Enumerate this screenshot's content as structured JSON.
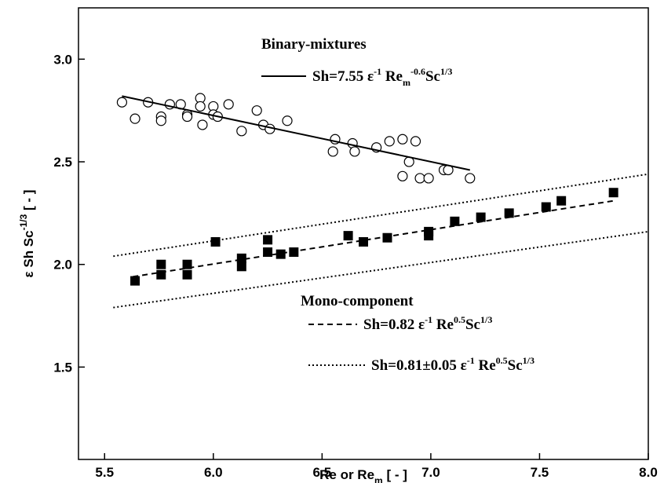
{
  "chart_data": {
    "type": "scatter",
    "x_label": [
      {
        "text": "Re or Re"
      },
      {
        "text": "m",
        "shift": "sub"
      },
      {
        "text": " [ - ]"
      }
    ],
    "y_label": [
      {
        "text": "ε Sh Sc"
      },
      {
        "text": "-1/3",
        "shift": "super"
      },
      {
        "text": " [ - ]"
      }
    ],
    "xlim": [
      5.38,
      8.0
    ],
    "ylim": [
      1.05,
      3.25
    ],
    "xticks": [
      5.5,
      {
        "value": 6,
        "label": "6.0"
      },
      6.5,
      {
        "value": 7,
        "label": "7.0"
      },
      7.5,
      {
        "value": 8,
        "label": "8.0"
      }
    ],
    "yticks": [
      1.5,
      {
        "value": 2,
        "label": "2.0"
      },
      2.5,
      {
        "value": 3,
        "label": "3.0"
      }
    ],
    "legend_groups": [
      "Binary-mixtures",
      "Mono-component"
    ],
    "series": [
      {
        "marker": "circle",
        "color": "#000000",
        "x": [
          5.58,
          5.64,
          5.7,
          5.76,
          5.76,
          5.8,
          5.85,
          5.88,
          5.88,
          5.94,
          5.94,
          5.95,
          6.0,
          6.0,
          6.02,
          6.07,
          6.13,
          6.2,
          6.23,
          6.26,
          6.34,
          6.56,
          6.55,
          6.64,
          6.65,
          6.75,
          6.81,
          6.87,
          6.87,
          6.9,
          6.93,
          6.95,
          6.99,
          7.06,
          7.08,
          7.18
        ],
        "values": [
          2.79,
          2.71,
          2.79,
          2.72,
          2.7,
          2.78,
          2.78,
          2.73,
          2.72,
          2.81,
          2.77,
          2.68,
          2.77,
          2.73,
          2.72,
          2.78,
          2.65,
          2.75,
          2.68,
          2.66,
          2.7,
          2.61,
          2.55,
          2.59,
          2.55,
          2.57,
          2.6,
          2.61,
          2.43,
          2.5,
          2.6,
          2.42,
          2.42,
          2.46,
          2.46,
          2.42
        ]
      },
      {
        "marker": "square",
        "color": "#000000",
        "x": [
          5.64,
          5.76,
          5.76,
          5.88,
          5.88,
          6.01,
          6.13,
          6.13,
          6.25,
          6.25,
          6.31,
          6.37,
          6.62,
          6.69,
          6.8,
          6.99,
          6.99,
          7.11,
          7.23,
          7.36,
          7.53,
          7.6,
          7.84
        ],
        "values": [
          1.92,
          2.0,
          1.95,
          2.0,
          1.95,
          2.11,
          2.03,
          1.99,
          2.12,
          2.06,
          2.05,
          2.06,
          2.14,
          2.11,
          2.13,
          2.16,
          2.14,
          2.21,
          2.23,
          2.25,
          2.28,
          2.31,
          2.35
        ]
      },
      {
        "marker": "line",
        "style": "solid",
        "color": "#000000",
        "x": [
          5.58,
          7.18
        ],
        "values": [
          2.82,
          2.46
        ],
        "legend": [
          {
            "text": "Sh=7.55 ε"
          },
          {
            "text": "-1",
            "shift": "super"
          },
          {
            "text": " Re"
          },
          {
            "text": "m",
            "shift": "sub"
          },
          {
            "text": "-0.6",
            "shift": "super"
          },
          {
            "text": "Sc"
          },
          {
            "text": "1/3",
            "shift": "super"
          }
        ]
      },
      {
        "marker": "line",
        "style": "dashed",
        "color": "#000000",
        "x": [
          5.63,
          7.84
        ],
        "values": [
          1.94,
          2.31
        ],
        "legend": [
          {
            "text": "Sh=0.82 ε"
          },
          {
            "text": "-1",
            "shift": "super"
          },
          {
            "text": " Re"
          },
          {
            "text": "0.5",
            "shift": "super"
          },
          {
            "text": "Sc"
          },
          {
            "text": "1/3",
            "shift": "super"
          }
        ]
      },
      {
        "marker": "line",
        "style": "dotted",
        "color": "#000000",
        "x": [
          5.54,
          8.0
        ],
        "values": [
          2.04,
          2.44
        ],
        "legend": [
          {
            "text": "Sh=0.81±0.05 ε"
          },
          {
            "text": "-1",
            "shift": "super"
          },
          {
            "text": " Re"
          },
          {
            "text": "0.5",
            "shift": "super"
          },
          {
            "text": "Sc"
          },
          {
            "text": "1/3",
            "shift": "super"
          }
        ]
      },
      {
        "marker": "line",
        "style": "dotted",
        "color": "#000000",
        "x": [
          5.54,
          8.0
        ],
        "values": [
          1.79,
          2.16
        ]
      }
    ]
  }
}
